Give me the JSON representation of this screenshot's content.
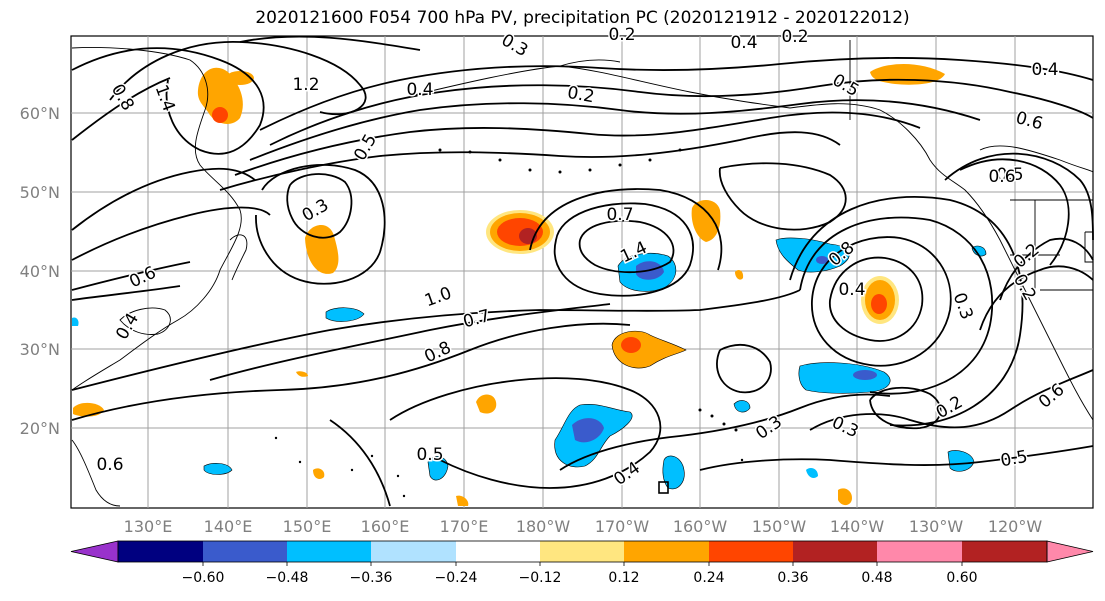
{
  "title": "2020121600 F054 700 hPa PV, precipitation PC (2020121912 - 2020122012)",
  "lat_labels": [
    "60°N",
    "50°N",
    "40°N",
    "30°N",
    "20°N"
  ],
  "lon_labels": [
    "130°E",
    "140°E",
    "150°E",
    "160°E",
    "170°E",
    "180°W",
    "170°W",
    "160°W",
    "150°W",
    "140°W",
    "130°W",
    "120°W"
  ],
  "contour_labels": [
    "0.8",
    "1.4",
    "1.2",
    "0.5",
    "0.3",
    "0.6",
    "0.4",
    "1.0",
    "0.7",
    "0.8",
    "0.5",
    "0.6",
    "0.7",
    "1.4",
    "0.8",
    "0.4",
    "0.3",
    "0.5",
    "0.6",
    "0.4",
    "0.3",
    "0.3",
    "0.2",
    "0.5",
    "0.6",
    "0.2",
    "0.2",
    "0.4",
    "0.4",
    "0.2",
    "0.2",
    "0.3",
    "0.2",
    "0.4",
    "0.5",
    "0.6"
  ],
  "colorbar": {
    "ticks": [
      "−0.60",
      "−0.48",
      "−0.36",
      "−0.24",
      "−0.12",
      "0.12",
      "0.24",
      "0.36",
      "0.48",
      "0.60"
    ],
    "colors": [
      "#9932cc",
      "#000080",
      "#3a5bcc",
      "#00bfff",
      "#b0e2ff",
      "#ffffff",
      "#ffe680",
      "#ffa500",
      "#ff4500",
      "#b22222",
      "#ff88aa"
    ]
  },
  "colors": {
    "pos1": "#ffe680",
    "pos2": "#ffa500",
    "pos3": "#ff4500",
    "pos4": "#b22222",
    "neg1": "#b0e2ff",
    "neg2": "#00bfff",
    "neg3": "#3a5bcc",
    "grid": "#a0a0a0",
    "axis_text": "#808080"
  }
}
